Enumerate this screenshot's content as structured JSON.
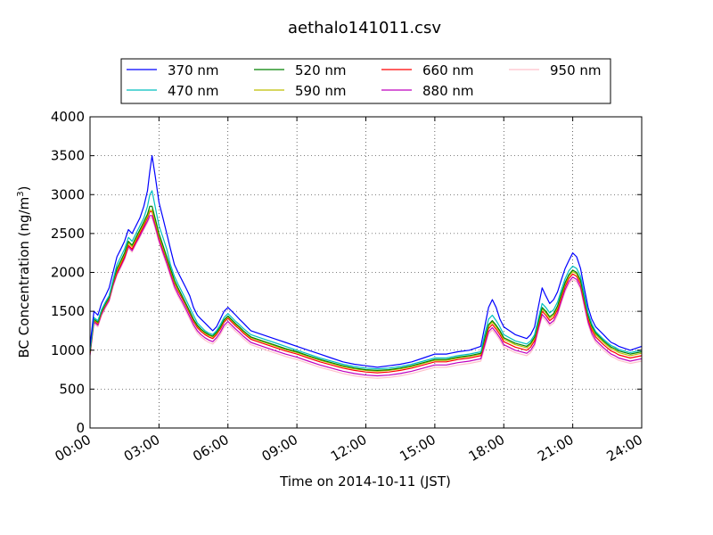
{
  "chart_data": {
    "type": "line",
    "title": "aethalo141011.csv",
    "xlabel": "Time on 2014-10-11 (JST)",
    "ylabel_main": "BC Concentration (ng/m",
    "ylabel_sup": "3",
    "ylabel_close": ")",
    "xlim": [
      "00:00",
      "24:00"
    ],
    "ylim": [
      0,
      4000
    ],
    "grid": true,
    "legend_position": "top",
    "x_tick_labels": [
      "00:00",
      "03:00",
      "06:00",
      "09:00",
      "12:00",
      "15:00",
      "18:00",
      "21:00",
      "24:00"
    ],
    "y_tick_labels": [
      "0",
      "500",
      "1000",
      "1500",
      "2000",
      "2500",
      "3000",
      "3500",
      "4000"
    ],
    "x_hours": [
      0,
      0.17,
      0.34,
      0.5,
      0.67,
      0.83,
      1.0,
      1.17,
      1.34,
      1.5,
      1.67,
      1.83,
      2.0,
      2.17,
      2.34,
      2.5,
      2.6,
      2.7,
      2.83,
      3.0,
      3.17,
      3.34,
      3.5,
      3.67,
      3.83,
      4.0,
      4.17,
      4.34,
      4.5,
      4.67,
      4.83,
      5.0,
      5.17,
      5.34,
      5.5,
      5.67,
      5.83,
      6.0,
      6.17,
      6.34,
      6.5,
      6.67,
      6.83,
      7.0,
      7.5,
      8.0,
      8.5,
      9.0,
      9.5,
      10.0,
      10.5,
      11.0,
      11.5,
      12.0,
      12.5,
      13.0,
      13.5,
      14.0,
      14.5,
      15.0,
      15.5,
      16.0,
      16.5,
      17.0,
      17.17,
      17.34,
      17.5,
      17.67,
      17.83,
      18.0,
      18.5,
      19.0,
      19.17,
      19.34,
      19.5,
      19.67,
      19.83,
      20.0,
      20.17,
      20.34,
      20.5,
      20.67,
      20.83,
      21.0,
      21.17,
      21.34,
      21.5,
      21.67,
      21.83,
      22.0,
      22.17,
      22.34,
      22.5,
      22.67,
      22.83,
      23.0,
      23.5,
      24.0
    ],
    "series": [
      {
        "name": "370 nm",
        "color": "#0000ff",
        "values": [
          1050,
          1500,
          1450,
          1600,
          1700,
          1800,
          2000,
          2200,
          2300,
          2400,
          2550,
          2500,
          2600,
          2700,
          2850,
          3050,
          3300,
          3500,
          3250,
          2900,
          2700,
          2500,
          2300,
          2100,
          2000,
          1900,
          1800,
          1700,
          1550,
          1450,
          1400,
          1350,
          1300,
          1250,
          1300,
          1400,
          1500,
          1550,
          1500,
          1450,
          1400,
          1350,
          1300,
          1250,
          1200,
          1150,
          1100,
          1050,
          1000,
          950,
          900,
          850,
          820,
          800,
          780,
          800,
          820,
          850,
          900,
          950,
          950,
          980,
          1000,
          1050,
          1300,
          1550,
          1650,
          1550,
          1400,
          1300,
          1200,
          1150,
          1200,
          1300,
          1550,
          1800,
          1700,
          1600,
          1650,
          1750,
          1900,
          2050,
          2150,
          2250,
          2200,
          2050,
          1800,
          1550,
          1400,
          1300,
          1250,
          1200,
          1150,
          1100,
          1080,
          1050,
          1000,
          1050
        ]
      },
      {
        "name": "470 nm",
        "color": "#00bfbf",
        "values": [
          1000,
          1420,
          1380,
          1520,
          1620,
          1700,
          1900,
          2100,
          2200,
          2300,
          2450,
          2400,
          2500,
          2600,
          2700,
          2850,
          3000,
          3050,
          2850,
          2600,
          2450,
          2300,
          2100,
          1950,
          1850,
          1750,
          1650,
          1550,
          1450,
          1350,
          1300,
          1250,
          1220,
          1200,
          1250,
          1330,
          1420,
          1470,
          1420,
          1370,
          1330,
          1280,
          1240,
          1200,
          1150,
          1100,
          1050,
          1000,
          950,
          900,
          860,
          820,
          790,
          770,
          760,
          770,
          790,
          820,
          860,
          900,
          900,
          930,
          950,
          980,
          1200,
          1400,
          1450,
          1380,
          1300,
          1200,
          1120,
          1080,
          1120,
          1200,
          1400,
          1600,
          1550,
          1480,
          1520,
          1620,
          1770,
          1920,
          2020,
          2080,
          2050,
          1950,
          1720,
          1480,
          1340,
          1240,
          1190,
          1140,
          1100,
          1060,
          1040,
          1010,
          970,
          1000
        ]
      },
      {
        "name": "520 nm",
        "color": "#008000",
        "values": [
          980,
          1400,
          1360,
          1500,
          1600,
          1680,
          1880,
          2050,
          2150,
          2250,
          2400,
          2350,
          2450,
          2550,
          2650,
          2750,
          2850,
          2850,
          2700,
          2500,
          2350,
          2200,
          2050,
          1900,
          1800,
          1700,
          1600,
          1500,
          1400,
          1320,
          1270,
          1230,
          1200,
          1180,
          1230,
          1300,
          1390,
          1440,
          1390,
          1340,
          1300,
          1250,
          1210,
          1170,
          1120,
          1070,
          1020,
          980,
          930,
          880,
          840,
          800,
          770,
          750,
          740,
          750,
          770,
          800,
          840,
          880,
          880,
          910,
          930,
          960,
          1150,
          1330,
          1380,
          1320,
          1250,
          1160,
          1090,
          1050,
          1090,
          1170,
          1360,
          1550,
          1500,
          1430,
          1470,
          1570,
          1720,
          1870,
          1970,
          2030,
          2000,
          1900,
          1680,
          1450,
          1310,
          1220,
          1170,
          1120,
          1080,
          1040,
          1020,
          990,
          950,
          980
        ]
      },
      {
        "name": "590 nm",
        "color": "#bfbf00",
        "values": [
          970,
          1390,
          1350,
          1490,
          1590,
          1670,
          1870,
          2030,
          2130,
          2230,
          2380,
          2330,
          2430,
          2530,
          2630,
          2720,
          2800,
          2800,
          2660,
          2470,
          2320,
          2180,
          2030,
          1880,
          1780,
          1690,
          1590,
          1490,
          1390,
          1310,
          1260,
          1220,
          1190,
          1170,
          1220,
          1290,
          1380,
          1430,
          1380,
          1330,
          1290,
          1240,
          1200,
          1160,
          1110,
          1060,
          1010,
          970,
          920,
          870,
          830,
          790,
          760,
          740,
          730,
          740,
          760,
          790,
          830,
          870,
          870,
          900,
          920,
          950,
          1130,
          1310,
          1360,
          1300,
          1230,
          1140,
          1070,
          1030,
          1070,
          1150,
          1340,
          1530,
          1480,
          1410,
          1450,
          1550,
          1700,
          1850,
          1950,
          2010,
          1980,
          1880,
          1660,
          1430,
          1290,
          1200,
          1150,
          1100,
          1060,
          1020,
          1000,
          970,
          930,
          960
        ]
      },
      {
        "name": "660 nm",
        "color": "#ff0000",
        "values": [
          960,
          1380,
          1340,
          1480,
          1580,
          1660,
          1850,
          2000,
          2100,
          2200,
          2350,
          2300,
          2400,
          2500,
          2600,
          2700,
          2780,
          2780,
          2640,
          2450,
          2300,
          2160,
          2010,
          1860,
          1760,
          1670,
          1570,
          1470,
          1370,
          1290,
          1240,
          1200,
          1170,
          1150,
          1200,
          1270,
          1360,
          1410,
          1360,
          1310,
          1270,
          1220,
          1180,
          1140,
          1090,
          1040,
          990,
          950,
          900,
          850,
          810,
          770,
          740,
          720,
          710,
          720,
          740,
          770,
          810,
          850,
          850,
          880,
          900,
          930,
          1100,
          1280,
          1330,
          1270,
          1200,
          1110,
          1040,
          1000,
          1040,
          1120,
          1310,
          1500,
          1450,
          1380,
          1420,
          1520,
          1670,
          1820,
          1920,
          1980,
          1950,
          1850,
          1630,
          1400,
          1260,
          1170,
          1120,
          1070,
          1030,
          990,
          970,
          940,
          900,
          930
        ]
      },
      {
        "name": "880 nm",
        "color": "#bf00bf",
        "values": [
          940,
          1360,
          1320,
          1460,
          1560,
          1640,
          1830,
          1980,
          2080,
          2180,
          2330,
          2280,
          2380,
          2470,
          2570,
          2660,
          2730,
          2730,
          2600,
          2410,
          2260,
          2120,
          1970,
          1820,
          1720,
          1630,
          1530,
          1430,
          1330,
          1250,
          1200,
          1160,
          1130,
          1110,
          1160,
          1230,
          1320,
          1370,
          1320,
          1270,
          1230,
          1180,
          1140,
          1100,
          1050,
          1000,
          950,
          910,
          860,
          810,
          770,
          730,
          700,
          680,
          670,
          680,
          700,
          730,
          770,
          810,
          810,
          840,
          860,
          890,
          1060,
          1240,
          1290,
          1230,
          1160,
          1070,
          1000,
          960,
          1000,
          1080,
          1270,
          1460,
          1410,
          1340,
          1380,
          1480,
          1630,
          1780,
          1880,
          1940,
          1910,
          1810,
          1590,
          1360,
          1220,
          1130,
          1080,
          1030,
          990,
          950,
          930,
          900,
          860,
          890
        ]
      },
      {
        "name": "950 nm",
        "color": "#ffc0cb",
        "values": [
          920,
          1340,
          1300,
          1440,
          1540,
          1620,
          1810,
          1960,
          2060,
          2160,
          2310,
          2260,
          2360,
          2450,
          2550,
          2640,
          2700,
          2700,
          2570,
          2380,
          2230,
          2090,
          1940,
          1790,
          1690,
          1600,
          1500,
          1400,
          1300,
          1220,
          1170,
          1130,
          1100,
          1080,
          1130,
          1200,
          1290,
          1340,
          1290,
          1240,
          1200,
          1150,
          1110,
          1070,
          1020,
          970,
          920,
          880,
          830,
          780,
          740,
          700,
          670,
          650,
          640,
          650,
          670,
          700,
          740,
          780,
          780,
          810,
          830,
          860,
          1030,
          1210,
          1260,
          1200,
          1130,
          1040,
          970,
          930,
          970,
          1050,
          1240,
          1430,
          1380,
          1310,
          1350,
          1450,
          1600,
          1750,
          1850,
          1910,
          1880,
          1780,
          1560,
          1330,
          1190,
          1100,
          1050,
          1000,
          960,
          920,
          900,
          870,
          830,
          860
        ]
      }
    ]
  }
}
